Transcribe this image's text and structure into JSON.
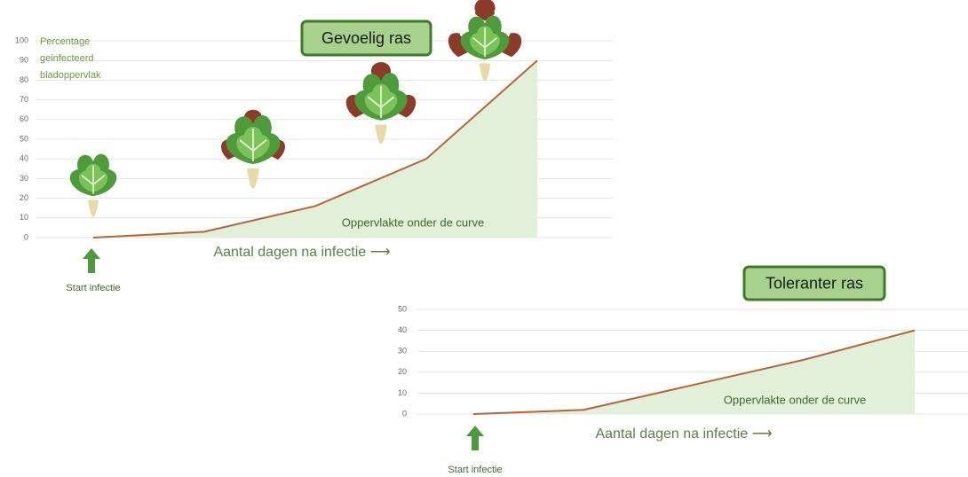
{
  "chart_data": [
    {
      "type": "area",
      "title": "Gevoelig ras",
      "ylabel": "Percentage geinfecteerd bladoppervlak",
      "xlabel": "Aantal dagen na infectie ⟶",
      "annotation": "Oppervlakte onder de curve",
      "marker_label": "Start infectie",
      "categories": [
        null,
        null,
        null,
        null,
        null
      ],
      "values": [
        0,
        3,
        16,
        40,
        90
      ],
      "line_color": "#b5653a",
      "fill_color": "#e2efd9",
      "ylim": [
        0,
        100
      ],
      "yticks": [
        0,
        10,
        20,
        30,
        40,
        50,
        60,
        70,
        80,
        90,
        100
      ],
      "grid": true
    },
    {
      "type": "area",
      "title": "Toleranter ras",
      "xlabel": "Aantal dagen na infectie ⟶",
      "annotation": "Oppervlakte onder de curve",
      "marker_label": "Start infectie",
      "categories": [
        null,
        null,
        null,
        null,
        null
      ],
      "values": [
        0,
        2,
        14,
        26,
        40
      ],
      "line_color": "#b5653a",
      "fill_color": "#e2efd9",
      "ylim": [
        0,
        50
      ],
      "yticks": [
        0,
        10,
        20,
        30,
        40,
        50
      ],
      "grid": true
    }
  ]
}
